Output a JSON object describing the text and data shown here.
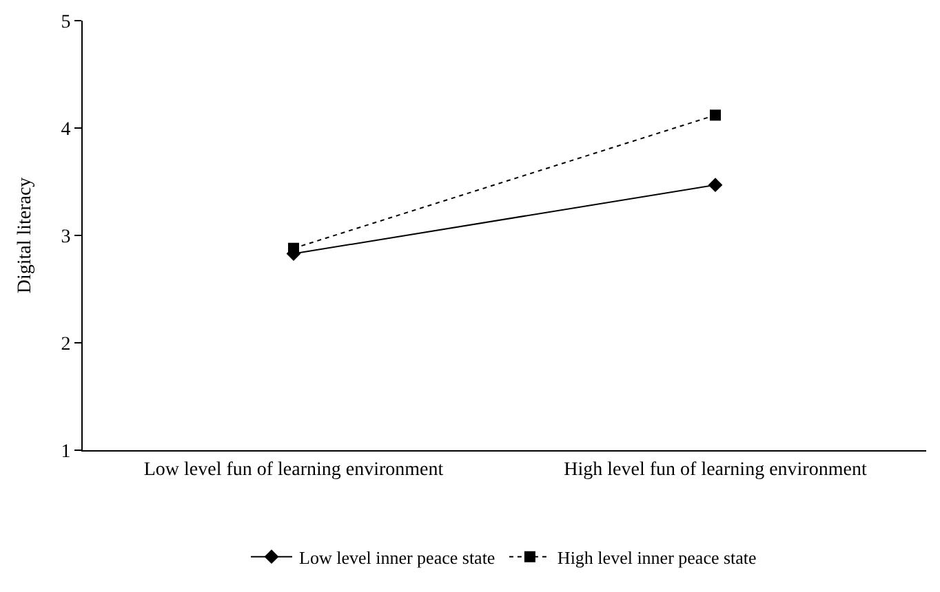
{
  "chart_data": {
    "type": "line",
    "ylabel": "Digital literacy",
    "categories": [
      "Low level fun of learning environment",
      "High level fun of learning environment"
    ],
    "series": [
      {
        "name": "Low level inner peace state",
        "color": "#000000",
        "values": [
          2.83,
          3.47
        ],
        "marker": "diamond",
        "line_style": "solid"
      },
      {
        "name": "High level inner peace state",
        "color": "#000000",
        "values": [
          2.88,
          4.12
        ],
        "marker": "square",
        "line_style": "dotted"
      }
    ],
    "ylim": [
      1,
      5
    ],
    "yticks": [
      1,
      2,
      3,
      4,
      5
    ],
    "grid": false,
    "legend": "bottom"
  }
}
